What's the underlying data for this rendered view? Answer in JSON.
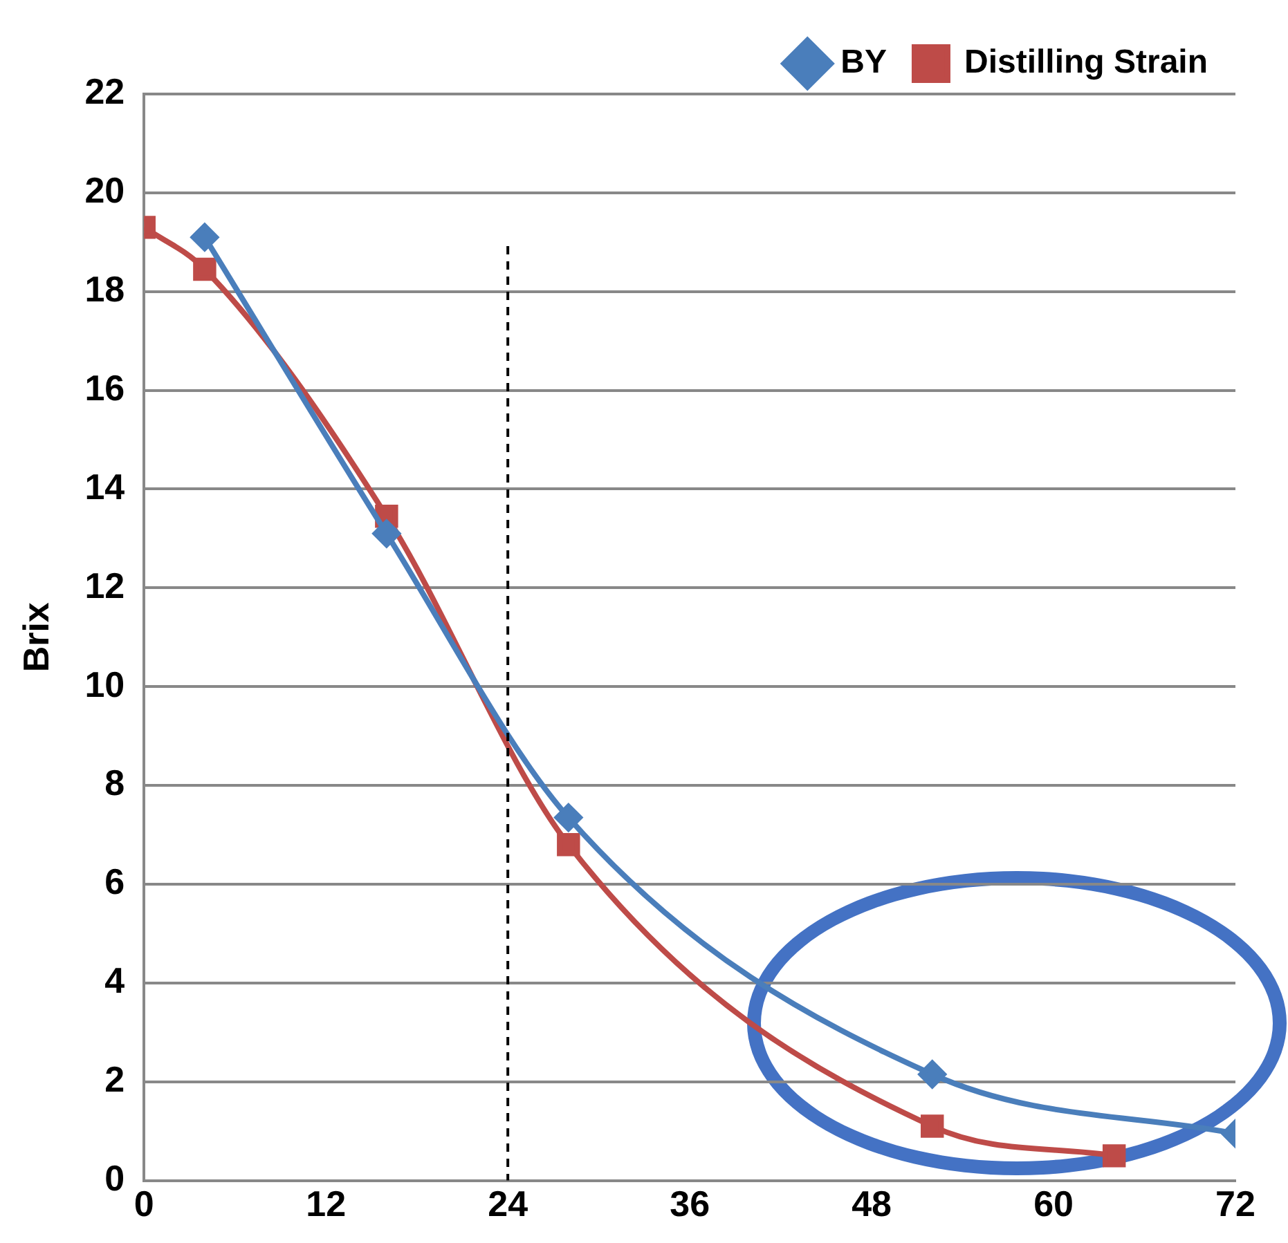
{
  "chart_data": {
    "type": "line",
    "ylabel": "Brix",
    "xlim": [
      0,
      72
    ],
    "xticks": [
      0,
      12,
      24,
      36,
      48,
      60,
      72
    ],
    "ylim": [
      0,
      22
    ],
    "yticks": [
      0,
      2,
      4,
      6,
      8,
      10,
      12,
      14,
      16,
      18,
      20,
      22
    ],
    "grid": "y",
    "legend": "top right",
    "series": [
      {
        "name": "BY",
        "color": "#4a7ebb",
        "marker": "diamond",
        "x": [
          4,
          16,
          28,
          52,
          72
        ],
        "values": [
          19.1,
          13.1,
          7.35,
          2.15,
          0.95
        ]
      },
      {
        "name": "Distilling Strain",
        "color": "#be4b48",
        "marker": "square",
        "x": [
          0,
          4,
          16,
          28,
          52,
          64
        ],
        "values": [
          19.3,
          18.45,
          13.45,
          6.8,
          1.1,
          0.5
        ]
      }
    ],
    "ref_lines": [
      {
        "axis": "x",
        "value": 24,
        "color": "#000000",
        "line_style": "dashed"
      }
    ]
  }
}
